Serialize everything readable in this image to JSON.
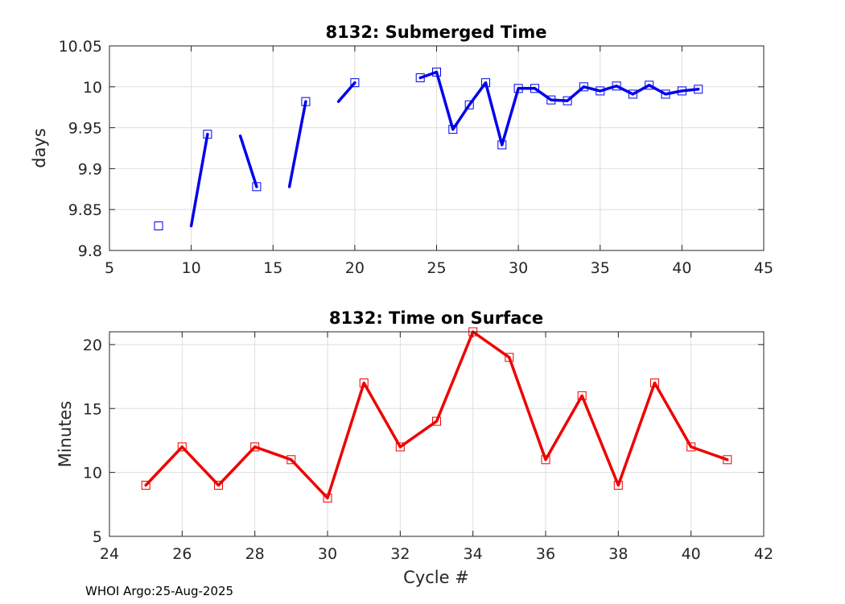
{
  "footer": "WHOI Argo:25-Aug-2025",
  "chart_data": [
    {
      "type": "line",
      "title": "8132: Submerged Time",
      "xlabel": "",
      "ylabel": "days",
      "xlim": [
        5,
        45
      ],
      "ylim": [
        9.8,
        10.05
      ],
      "xticks": [
        5,
        10,
        15,
        20,
        25,
        30,
        35,
        40,
        45
      ],
      "yticks": [
        9.8,
        9.85,
        9.9,
        9.95,
        10,
        10.05
      ],
      "ytick_labels": [
        "9.8",
        "9.85",
        "9.9",
        "9.95",
        "10",
        "10.05"
      ],
      "grid": true,
      "color": "#0000ee",
      "marker": "square",
      "markers": {
        "x": [
          8,
          11,
          14,
          17,
          20,
          24,
          25,
          26,
          27,
          28,
          29,
          30,
          31,
          32,
          33,
          34,
          35,
          36,
          37,
          38,
          39,
          40,
          41
        ],
        "y": [
          9.83,
          9.942,
          9.878,
          9.982,
          10.005,
          10.011,
          10.018,
          9.948,
          9.978,
          10.005,
          9.929,
          9.998,
          9.998,
          9.984,
          9.983,
          10.0,
          9.995,
          10.001,
          9.991,
          10.002,
          9.991,
          9.995,
          9.997
        ]
      },
      "segments": [
        {
          "x": [
            10,
            11
          ],
          "y": [
            9.83,
            9.942
          ]
        },
        {
          "x": [
            13,
            14
          ],
          "y": [
            9.94,
            9.878
          ]
        },
        {
          "x": [
            16,
            17
          ],
          "y": [
            9.878,
            9.982
          ]
        },
        {
          "x": [
            19,
            20
          ],
          "y": [
            9.982,
            10.005
          ]
        },
        {
          "x": [
            24,
            25,
            26,
            27,
            28,
            29,
            30,
            31,
            32,
            33,
            34,
            35,
            36,
            37,
            38,
            39,
            40,
            41
          ],
          "y": [
            10.011,
            10.018,
            9.948,
            9.978,
            10.005,
            9.929,
            9.998,
            9.998,
            9.984,
            9.983,
            10.0,
            9.995,
            10.001,
            9.991,
            10.002,
            9.991,
            9.995,
            9.997
          ]
        }
      ]
    },
    {
      "type": "line",
      "title": "8132: Time on Surface",
      "xlabel": "Cycle #",
      "ylabel": "Minutes",
      "xlim": [
        24,
        42
      ],
      "ylim": [
        5,
        21
      ],
      "xticks": [
        24,
        26,
        28,
        30,
        32,
        34,
        36,
        38,
        40,
        42
      ],
      "yticks": [
        5,
        10,
        15,
        20
      ],
      "grid": true,
      "color": "#ee0000",
      "marker": "square",
      "x": [
        25,
        26,
        27,
        28,
        29,
        30,
        31,
        32,
        33,
        34,
        35,
        36,
        37,
        38,
        39,
        40,
        41
      ],
      "y": [
        9,
        12,
        9,
        12,
        11,
        8,
        17,
        12,
        14,
        21,
        19,
        11,
        16,
        9,
        17,
        12,
        11
      ]
    }
  ]
}
